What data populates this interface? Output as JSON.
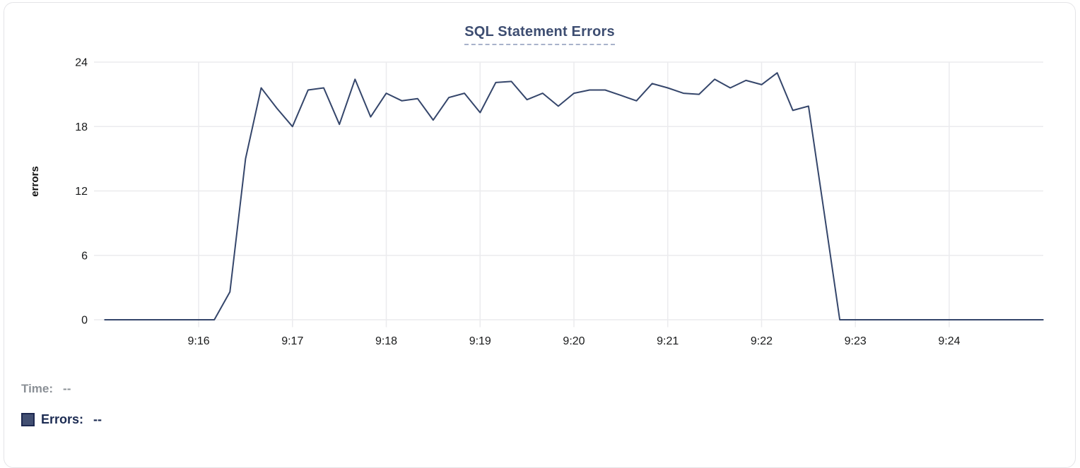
{
  "chart_data": {
    "type": "line",
    "title": "SQL Statement Errors",
    "xlabel": "",
    "ylabel": "errors",
    "ylim": [
      0,
      24
    ],
    "y_ticks": [
      0,
      6,
      12,
      18,
      24
    ],
    "x_tick_labels": [
      "9:16",
      "9:17",
      "9:18",
      "9:19",
      "9:20",
      "9:21",
      "9:22",
      "9:23",
      "9:24"
    ],
    "x_tick_offsets_s": [
      60,
      120,
      180,
      240,
      300,
      360,
      420,
      480,
      540
    ],
    "x_range": [
      "9:15:00",
      "9:25:00"
    ],
    "grid": true,
    "legend_position": "bottom-left",
    "start_time": "9:15:00",
    "interval_seconds": 10,
    "series": [
      {
        "name": "Errors",
        "color": "#35466b",
        "values": [
          0,
          0,
          0,
          0,
          0,
          0,
          0,
          0,
          2.6,
          15,
          21.6,
          19.7,
          18,
          21.4,
          21.6,
          18.2,
          22.4,
          18.9,
          21.1,
          20.4,
          20.6,
          18.6,
          20.7,
          21.1,
          19.3,
          22.1,
          22.2,
          20.5,
          21.1,
          19.9,
          21.1,
          21.4,
          21.4,
          20.9,
          20.4,
          22,
          21.6,
          21.1,
          21,
          22.4,
          21.6,
          22.3,
          21.9,
          23,
          19.5,
          19.9,
          10,
          0,
          0,
          0,
          0,
          0,
          0,
          0,
          0,
          0,
          0,
          0,
          0,
          0,
          0
        ]
      }
    ]
  },
  "tooltip_legend": {
    "time_label": "Time:",
    "time_value": "--",
    "errors_label": "Errors:",
    "errors_value": "--",
    "swatch_color": "#424f72"
  },
  "style_colors": {
    "title": "#3d4d71",
    "title_underline": "#a8b2ca",
    "gridline": "#ebebee",
    "axis_text": "#18191a",
    "line": "#35466b",
    "legend_gray": "#8b9096",
    "legend_navy": "#1c2b52"
  }
}
